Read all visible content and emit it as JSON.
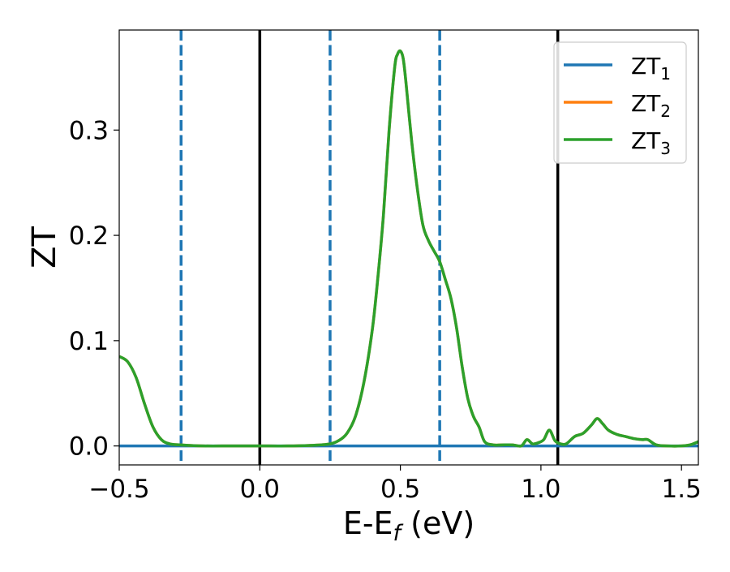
{
  "chart_data": {
    "type": "line",
    "xlabel": "E-E",
    "xlabel_sub": "f",
    "xlabel_unit": " (eV)",
    "ylabel": "ZT",
    "xlim": [
      -0.5,
      1.56
    ],
    "ylim": [
      -0.018,
      0.395
    ],
    "xticks": [
      -0.5,
      0.0,
      0.5,
      1.0,
      1.5
    ],
    "xtick_labels": [
      "−0.5",
      "0.0",
      "0.5",
      "1.0",
      "1.5"
    ],
    "yticks": [
      0.0,
      0.1,
      0.2,
      0.3
    ],
    "ytick_labels": [
      "0.0",
      "0.1",
      "0.2",
      "0.3"
    ],
    "grid": false,
    "legend_position": "top-right",
    "vlines_solid": [
      0.0,
      1.06
    ],
    "vlines_dashed": [
      -0.28,
      0.25,
      0.64
    ],
    "series": [
      {
        "name": "ZT",
        "sub": "1",
        "color": "#1f77b4",
        "x": [
          -0.5,
          1.56
        ],
        "y": [
          0.0,
          0.0
        ]
      },
      {
        "name": "ZT",
        "sub": "2",
        "color": "#ff7f0e",
        "x": [
          -0.5,
          -0.47,
          -0.44,
          -0.41,
          -0.38,
          -0.35,
          -0.32,
          -0.28,
          -0.2,
          -0.1,
          0.0,
          0.1,
          0.2,
          0.25,
          0.28,
          0.31,
          0.34,
          0.37,
          0.4,
          0.42,
          0.44,
          0.46,
          0.48,
          0.49,
          0.5,
          0.51,
          0.52,
          0.54,
          0.56,
          0.58,
          0.6,
          0.62,
          0.64,
          0.66,
          0.68,
          0.7,
          0.72,
          0.74,
          0.76,
          0.78,
          0.8,
          0.83,
          0.86,
          0.9,
          0.93,
          0.95,
          0.97,
          0.99,
          1.01,
          1.03,
          1.05,
          1.07,
          1.09,
          1.12,
          1.15,
          1.18,
          1.2,
          1.22,
          1.24,
          1.27,
          1.3,
          1.33,
          1.36,
          1.38,
          1.41,
          1.45,
          1.5,
          1.53,
          1.56
        ],
        "y": [
          0.085,
          0.08,
          0.065,
          0.04,
          0.018,
          0.006,
          0.002,
          0.001,
          0.0,
          0.0,
          0.0,
          0.0,
          0.0008,
          0.002,
          0.005,
          0.012,
          0.028,
          0.06,
          0.11,
          0.16,
          0.22,
          0.3,
          0.36,
          0.372,
          0.375,
          0.368,
          0.345,
          0.29,
          0.245,
          0.21,
          0.195,
          0.185,
          0.175,
          0.158,
          0.14,
          0.112,
          0.075,
          0.045,
          0.028,
          0.018,
          0.004,
          0.001,
          0.001,
          0.001,
          0.0,
          0.006,
          0.002,
          0.003,
          0.006,
          0.015,
          0.005,
          0.002,
          0.002,
          0.009,
          0.012,
          0.02,
          0.026,
          0.021,
          0.015,
          0.011,
          0.009,
          0.007,
          0.006,
          0.006,
          0.001,
          0.0,
          0.0,
          0.001,
          0.004
        ]
      },
      {
        "name": "ZT",
        "sub": "3",
        "color": "#2ca02c",
        "x": [
          -0.5,
          -0.47,
          -0.44,
          -0.41,
          -0.38,
          -0.35,
          -0.32,
          -0.28,
          -0.2,
          -0.1,
          0.0,
          0.1,
          0.2,
          0.25,
          0.28,
          0.31,
          0.34,
          0.37,
          0.4,
          0.42,
          0.44,
          0.46,
          0.48,
          0.49,
          0.5,
          0.51,
          0.52,
          0.54,
          0.56,
          0.58,
          0.6,
          0.62,
          0.64,
          0.66,
          0.68,
          0.7,
          0.72,
          0.74,
          0.76,
          0.78,
          0.8,
          0.83,
          0.86,
          0.9,
          0.93,
          0.95,
          0.97,
          0.99,
          1.01,
          1.03,
          1.05,
          1.07,
          1.09,
          1.12,
          1.15,
          1.18,
          1.2,
          1.22,
          1.24,
          1.27,
          1.3,
          1.33,
          1.36,
          1.38,
          1.41,
          1.45,
          1.5,
          1.53,
          1.56
        ],
        "y": [
          0.085,
          0.08,
          0.065,
          0.04,
          0.018,
          0.006,
          0.002,
          0.001,
          0.0,
          0.0,
          0.0,
          0.0,
          0.0008,
          0.002,
          0.005,
          0.012,
          0.028,
          0.06,
          0.11,
          0.16,
          0.22,
          0.3,
          0.36,
          0.372,
          0.375,
          0.368,
          0.345,
          0.29,
          0.245,
          0.21,
          0.195,
          0.185,
          0.175,
          0.158,
          0.14,
          0.112,
          0.075,
          0.045,
          0.028,
          0.018,
          0.004,
          0.001,
          0.001,
          0.001,
          0.0,
          0.006,
          0.002,
          0.003,
          0.006,
          0.015,
          0.005,
          0.002,
          0.002,
          0.009,
          0.012,
          0.02,
          0.026,
          0.021,
          0.015,
          0.011,
          0.009,
          0.007,
          0.006,
          0.006,
          0.001,
          0.0,
          0.0,
          0.001,
          0.004
        ]
      }
    ]
  }
}
